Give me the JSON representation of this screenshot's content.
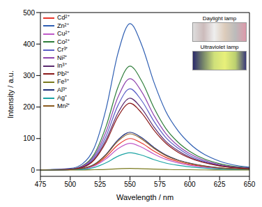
{
  "chart_data": {
    "type": "line",
    "x_label": "Wavelength / nm",
    "y_label": "Intensity / a.u.",
    "x": [
      475,
      500,
      510,
      520,
      530,
      540,
      550,
      560,
      570,
      580,
      590,
      600,
      625,
      650
    ],
    "xlim": [
      475,
      650
    ],
    "xticks": [
      475,
      500,
      525,
      550,
      575,
      600,
      625,
      650
    ],
    "ylim": [
      -20,
      500
    ],
    "yticks": [
      0,
      100,
      200,
      300,
      400,
      500
    ],
    "grid": false,
    "legend": "upper left",
    "annotations": [
      "Daylight lamp",
      "Ultraviolet lamp"
    ],
    "series": [
      {
        "name": "Cd²⁺",
        "color": "#e8352b",
        "values": [
          0,
          1,
          4,
          15,
          42,
          80,
          100,
          85,
          60,
          40,
          27,
          18,
          6,
          2
        ]
      },
      {
        "name": "Zn²⁺",
        "color": "#2f5fb3",
        "values": [
          0,
          5,
          19,
          70,
          195,
          372,
          465,
          395,
          279,
          186,
          126,
          84,
          28,
          9
        ]
      },
      {
        "name": "Cu²⁺",
        "color": "#c05ac8",
        "values": [
          0,
          1,
          3,
          13,
          36,
          68,
          85,
          72,
          51,
          34,
          23,
          15,
          5,
          2
        ]
      },
      {
        "name": "Co²⁺",
        "color": "#2e7d3a",
        "values": [
          0,
          3,
          13,
          50,
          139,
          264,
          330,
          281,
          198,
          132,
          89,
          59,
          20,
          7
        ]
      },
      {
        "name": "Cr³⁺",
        "color": "#5b5fc7",
        "values": [
          0,
          3,
          10,
          39,
          108,
          206,
          258,
          219,
          155,
          103,
          70,
          46,
          15,
          5
        ]
      },
      {
        "name": "Ni²⁺",
        "color": "#8e44ad",
        "values": [
          0,
          3,
          12,
          44,
          122,
          232,
          290,
          247,
          174,
          116,
          78,
          52,
          17,
          6
        ]
      },
      {
        "name": "In³⁺",
        "color": "#5a2a6e",
        "values": [
          0,
          2,
          9,
          34,
          96,
          182,
          228,
          194,
          137,
          91,
          62,
          41,
          14,
          5
        ]
      },
      {
        "name": "Pb²⁺",
        "color": "#8b1a1a",
        "values": [
          0,
          2,
          8,
          32,
          89,
          170,
          212,
          180,
          127,
          85,
          57,
          38,
          13,
          4
        ]
      },
      {
        "name": "Fe³⁺",
        "color": "#7a7a1e",
        "values": [
          0,
          0,
          0,
          1,
          2,
          4,
          5,
          4,
          3,
          2,
          1,
          1,
          0,
          0
        ]
      },
      {
        "name": "Al³⁺",
        "color": "#1f2f7a",
        "values": [
          0,
          1,
          5,
          18,
          50,
          96,
          120,
          102,
          72,
          48,
          32,
          22,
          7,
          2
        ]
      },
      {
        "name": "Ag⁺",
        "color": "#1aa3a3",
        "values": [
          0,
          1,
          2,
          8,
          23,
          44,
          55,
          47,
          33,
          22,
          15,
          10,
          3,
          1
        ]
      },
      {
        "name": "Mn²⁺",
        "color": "#8a5a1e",
        "values": [
          0,
          1,
          5,
          17,
          48,
          92,
          115,
          98,
          69,
          46,
          31,
          21,
          7,
          2
        ]
      }
    ]
  }
}
